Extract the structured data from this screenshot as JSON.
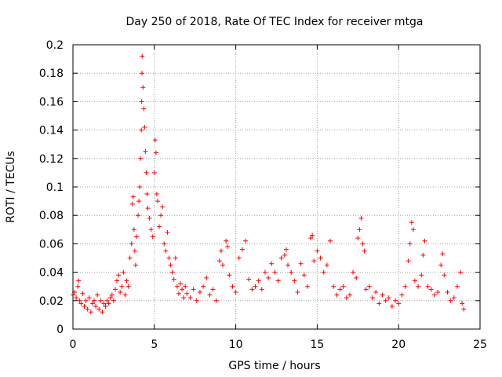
{
  "chart_data": {
    "type": "scatter",
    "title": "Day 250 of 2018, Rate Of TEC Index for receiver mtga",
    "xlabel": "GPS time / hours",
    "ylabel": "ROTI / TECUs",
    "xlim": [
      0,
      25
    ],
    "ylim": [
      0,
      0.2
    ],
    "xticks": [
      0,
      5,
      10,
      15,
      20,
      25
    ],
    "xtick_labels": [
      "0",
      "5",
      "10",
      "15",
      "20",
      "25"
    ],
    "yticks": [
      0,
      0.02,
      0.04,
      0.06,
      0.08,
      0.1,
      0.12,
      0.14,
      0.16,
      0.18,
      0.2
    ],
    "ytick_labels": [
      "0",
      "0.02",
      "0.04",
      "0.06",
      "0.08",
      "0.1",
      "0.12",
      "0.14",
      "0.16",
      "0.18",
      "0.2"
    ],
    "grid": true,
    "marker": "+",
    "color": "#ff0000",
    "series": [
      {
        "name": "ROTI",
        "points": [
          [
            0.0,
            0.024
          ],
          [
            0.1,
            0.026
          ],
          [
            0.2,
            0.022
          ],
          [
            0.3,
            0.03
          ],
          [
            0.35,
            0.034
          ],
          [
            0.4,
            0.02
          ],
          [
            0.5,
            0.018
          ],
          [
            0.6,
            0.025
          ],
          [
            0.7,
            0.016
          ],
          [
            0.8,
            0.02
          ],
          [
            0.9,
            0.014
          ],
          [
            1.0,
            0.022
          ],
          [
            1.1,
            0.012
          ],
          [
            1.2,
            0.018
          ],
          [
            1.3,
            0.02
          ],
          [
            1.4,
            0.016
          ],
          [
            1.5,
            0.024
          ],
          [
            1.6,
            0.014
          ],
          [
            1.7,
            0.02
          ],
          [
            1.8,
            0.012
          ],
          [
            1.9,
            0.018
          ],
          [
            2.0,
            0.016
          ],
          [
            2.1,
            0.02
          ],
          [
            2.2,
            0.018
          ],
          [
            2.3,
            0.022
          ],
          [
            2.4,
            0.024
          ],
          [
            2.5,
            0.02
          ],
          [
            2.6,
            0.028
          ],
          [
            2.7,
            0.034
          ],
          [
            2.8,
            0.038
          ],
          [
            2.9,
            0.026
          ],
          [
            3.0,
            0.03
          ],
          [
            3.1,
            0.04
          ],
          [
            3.2,
            0.024
          ],
          [
            3.3,
            0.034
          ],
          [
            3.4,
            0.03
          ],
          [
            3.5,
            0.05
          ],
          [
            3.6,
            0.06
          ],
          [
            3.65,
            0.088
          ],
          [
            3.7,
            0.093
          ],
          [
            3.75,
            0.07
          ],
          [
            3.8,
            0.055
          ],
          [
            3.85,
            0.045
          ],
          [
            3.9,
            0.065
          ],
          [
            4.0,
            0.08
          ],
          [
            4.05,
            0.09
          ],
          [
            4.1,
            0.1
          ],
          [
            4.15,
            0.12
          ],
          [
            4.2,
            0.14
          ],
          [
            4.22,
            0.16
          ],
          [
            4.24,
            0.18
          ],
          [
            4.25,
            0.192
          ],
          [
            4.3,
            0.17
          ],
          [
            4.35,
            0.155
          ],
          [
            4.4,
            0.142
          ],
          [
            4.45,
            0.125
          ],
          [
            4.5,
            0.11
          ],
          [
            4.55,
            0.095
          ],
          [
            4.6,
            0.085
          ],
          [
            4.7,
            0.078
          ],
          [
            4.8,
            0.07
          ],
          [
            4.9,
            0.065
          ],
          [
            5.0,
            0.11
          ],
          [
            5.05,
            0.133
          ],
          [
            5.1,
            0.124
          ],
          [
            5.15,
            0.095
          ],
          [
            5.2,
            0.09
          ],
          [
            5.3,
            0.072
          ],
          [
            5.4,
            0.08
          ],
          [
            5.5,
            0.086
          ],
          [
            5.6,
            0.06
          ],
          [
            5.7,
            0.055
          ],
          [
            5.8,
            0.068
          ],
          [
            5.9,
            0.05
          ],
          [
            6.0,
            0.045
          ],
          [
            6.1,
            0.04
          ],
          [
            6.2,
            0.035
          ],
          [
            6.3,
            0.05
          ],
          [
            6.4,
            0.03
          ],
          [
            6.5,
            0.025
          ],
          [
            6.6,
            0.032
          ],
          [
            6.7,
            0.028
          ],
          [
            6.8,
            0.022
          ],
          [
            6.9,
            0.03
          ],
          [
            7.0,
            0.025
          ],
          [
            7.2,
            0.022
          ],
          [
            7.4,
            0.028
          ],
          [
            7.6,
            0.02
          ],
          [
            7.8,
            0.026
          ],
          [
            8.0,
            0.03
          ],
          [
            8.2,
            0.036
          ],
          [
            8.4,
            0.024
          ],
          [
            8.6,
            0.028
          ],
          [
            8.8,
            0.02
          ],
          [
            9.0,
            0.048
          ],
          [
            9.1,
            0.055
          ],
          [
            9.2,
            0.045
          ],
          [
            9.4,
            0.062
          ],
          [
            9.5,
            0.058
          ],
          [
            9.6,
            0.038
          ],
          [
            9.8,
            0.03
          ],
          [
            10.0,
            0.026
          ],
          [
            10.2,
            0.05
          ],
          [
            10.4,
            0.056
          ],
          [
            10.6,
            0.062
          ],
          [
            10.8,
            0.035
          ],
          [
            11.0,
            0.028
          ],
          [
            11.2,
            0.03
          ],
          [
            11.4,
            0.034
          ],
          [
            11.6,
            0.028
          ],
          [
            11.8,
            0.04
          ],
          [
            12.0,
            0.036
          ],
          [
            12.2,
            0.046
          ],
          [
            12.4,
            0.04
          ],
          [
            12.6,
            0.034
          ],
          [
            12.8,
            0.05
          ],
          [
            13.0,
            0.052
          ],
          [
            13.1,
            0.056
          ],
          [
            13.2,
            0.045
          ],
          [
            13.4,
            0.04
          ],
          [
            13.6,
            0.034
          ],
          [
            13.8,
            0.026
          ],
          [
            14.0,
            0.046
          ],
          [
            14.2,
            0.038
          ],
          [
            14.4,
            0.03
          ],
          [
            14.6,
            0.064
          ],
          [
            14.7,
            0.066
          ],
          [
            14.8,
            0.048
          ],
          [
            15.0,
            0.055
          ],
          [
            15.2,
            0.05
          ],
          [
            15.4,
            0.04
          ],
          [
            15.6,
            0.045
          ],
          [
            15.8,
            0.062
          ],
          [
            16.0,
            0.03
          ],
          [
            16.2,
            0.024
          ],
          [
            16.4,
            0.028
          ],
          [
            16.6,
            0.03
          ],
          [
            16.8,
            0.022
          ],
          [
            17.0,
            0.024
          ],
          [
            17.2,
            0.04
          ],
          [
            17.4,
            0.036
          ],
          [
            17.5,
            0.064
          ],
          [
            17.6,
            0.07
          ],
          [
            17.7,
            0.078
          ],
          [
            17.8,
            0.06
          ],
          [
            17.9,
            0.055
          ],
          [
            18.0,
            0.028
          ],
          [
            18.2,
            0.03
          ],
          [
            18.4,
            0.022
          ],
          [
            18.6,
            0.026
          ],
          [
            18.8,
            0.018
          ],
          [
            19.0,
            0.024
          ],
          [
            19.2,
            0.02
          ],
          [
            19.4,
            0.022
          ],
          [
            19.6,
            0.016
          ],
          [
            19.8,
            0.02
          ],
          [
            20.0,
            0.018
          ],
          [
            20.2,
            0.024
          ],
          [
            20.4,
            0.03
          ],
          [
            20.6,
            0.048
          ],
          [
            20.7,
            0.06
          ],
          [
            20.8,
            0.075
          ],
          [
            20.9,
            0.07
          ],
          [
            21.0,
            0.034
          ],
          [
            21.2,
            0.03
          ],
          [
            21.4,
            0.038
          ],
          [
            21.5,
            0.052
          ],
          [
            21.6,
            0.062
          ],
          [
            21.8,
            0.03
          ],
          [
            22.0,
            0.028
          ],
          [
            22.2,
            0.024
          ],
          [
            22.4,
            0.026
          ],
          [
            22.6,
            0.045
          ],
          [
            22.7,
            0.053
          ],
          [
            22.8,
            0.038
          ],
          [
            23.0,
            0.026
          ],
          [
            23.2,
            0.02
          ],
          [
            23.4,
            0.022
          ],
          [
            23.6,
            0.03
          ],
          [
            23.8,
            0.04
          ],
          [
            23.9,
            0.018
          ],
          [
            24.0,
            0.014
          ]
        ]
      }
    ]
  }
}
